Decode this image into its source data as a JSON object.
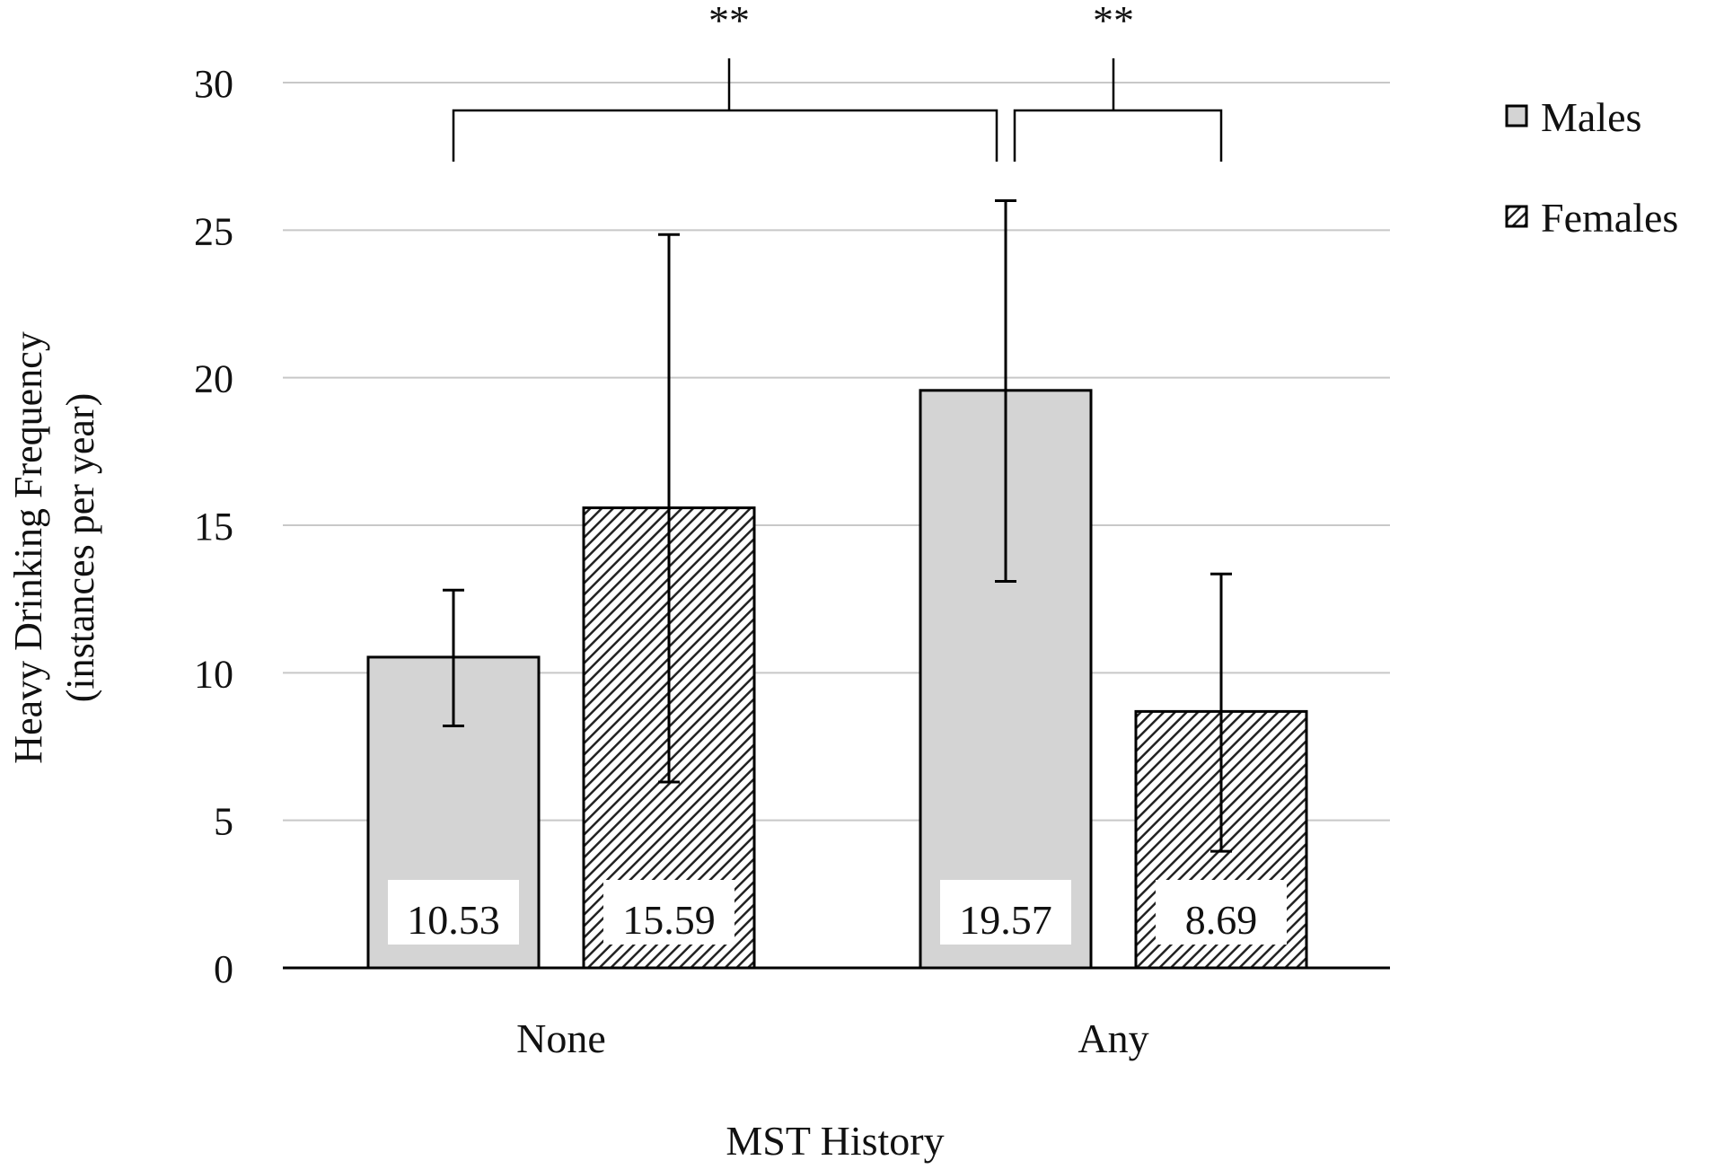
{
  "chart_data": {
    "type": "bar",
    "title": "",
    "xlabel": "MST History",
    "ylabel_line1": "Heavy Drinking Frequency",
    "ylabel_line2": "(instances per year)",
    "ylim": [
      0,
      30
    ],
    "yticks": [
      "0",
      "5",
      "10",
      "15",
      "20",
      "25",
      "30"
    ],
    "grid": true,
    "legend_position": "top-right",
    "categories": [
      "None",
      "Any"
    ],
    "series": [
      {
        "name": "Males",
        "pattern": "solid-gray",
        "values": [
          10.53,
          19.57
        ],
        "labels": [
          "10.53",
          "19.57"
        ],
        "error_low": [
          8.2,
          13.1
        ],
        "error_high": [
          12.8,
          26.0
        ]
      },
      {
        "name": "Females",
        "pattern": "diagonal-hatch",
        "values": [
          15.59,
          8.69
        ],
        "labels": [
          "15.59",
          "8.69"
        ],
        "error_low": [
          6.3,
          3.95
        ],
        "error_high": [
          24.85,
          13.35
        ]
      }
    ],
    "significance": [
      {
        "label": "**",
        "from": "None",
        "to": "Any"
      },
      {
        "label": "**",
        "from": "Any",
        "to": "Any"
      }
    ],
    "colors": {
      "males_fill": "#d4d4d4",
      "females_hatch": "#222222",
      "grid": "#c8c8c8",
      "axis": "#000000"
    }
  }
}
